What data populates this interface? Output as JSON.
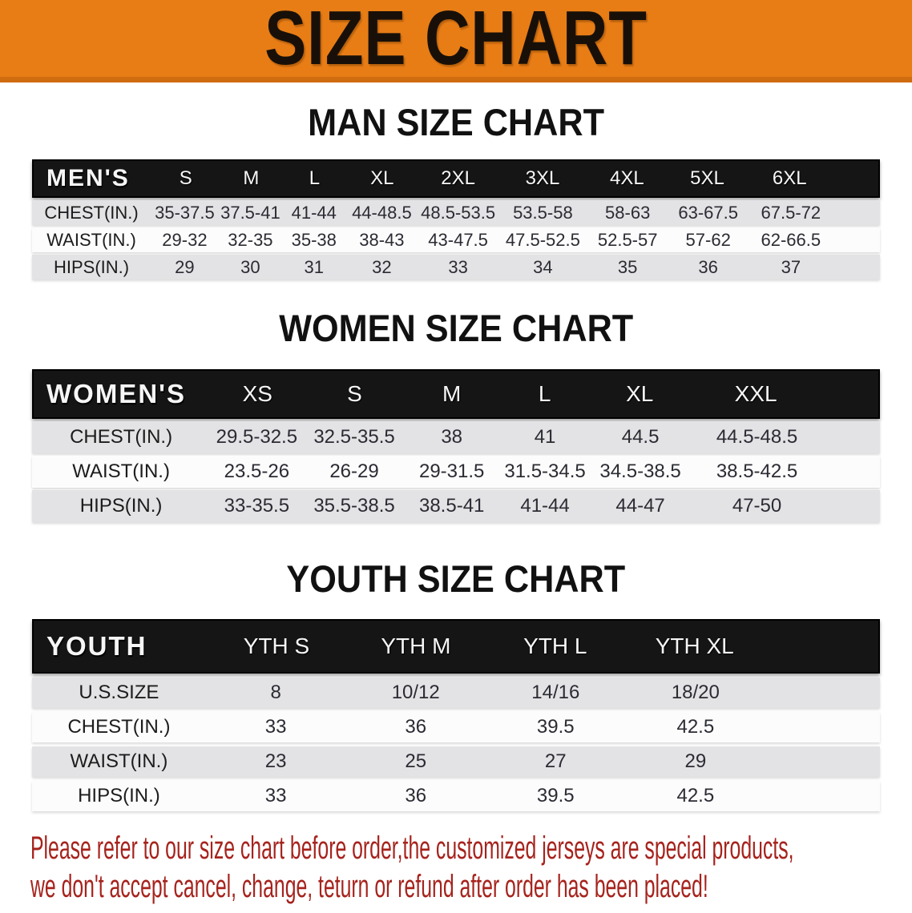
{
  "banner": {
    "title": "SIZE CHART",
    "bg_color": "#e87d16",
    "edge_color": "#d06c10",
    "text_color": "#181008"
  },
  "sections": [
    {
      "title": "MAN SIZE CHART",
      "group_label": "MEN'S",
      "sizes": [
        "S",
        "M",
        "L",
        "XL",
        "2XL",
        "3XL",
        "4XL",
        "5XL",
        "6XL"
      ],
      "rows": [
        {
          "label": "CHEST(IN.)",
          "values": [
            "35-37.5",
            "37.5-41",
            "41-44",
            "44-48.5",
            "48.5-53.5",
            "53.5-58",
            "58-63",
            "63-67.5",
            "67.5-72"
          ]
        },
        {
          "label": "WAIST(IN.)",
          "values": [
            "29-32",
            "32-35",
            "35-38",
            "38-43",
            "43-47.5",
            "47.5-52.5",
            "52.5-57",
            "57-62",
            "62-66.5"
          ]
        },
        {
          "label": "HIPS(IN.)",
          "values": [
            "29",
            "30",
            "31",
            "32",
            "33",
            "34",
            "35",
            "36",
            "37"
          ]
        }
      ]
    },
    {
      "title": "WOMEN SIZE CHART",
      "group_label": "WOMEN'S",
      "sizes": [
        "XS",
        "S",
        "M",
        "L",
        "XL",
        "XXL"
      ],
      "rows": [
        {
          "label": "CHEST(IN.)",
          "values": [
            "29.5-32.5",
            "32.5-35.5",
            "38",
            "41",
            "44.5",
            "44.5-48.5"
          ]
        },
        {
          "label": "WAIST(IN.)",
          "values": [
            "23.5-26",
            "26-29",
            "29-31.5",
            "31.5-34.5",
            "34.5-38.5",
            "38.5-42.5"
          ]
        },
        {
          "label": "HIPS(IN.)",
          "values": [
            "33-35.5",
            "35.5-38.5",
            "38.5-41",
            "41-44",
            "44-47",
            "47-50"
          ]
        }
      ]
    },
    {
      "title": "YOUTH SIZE CHART",
      "group_label": "YOUTH",
      "sizes": [
        "YTH S",
        "YTH M",
        "YTH L",
        "YTH XL"
      ],
      "rows": [
        {
          "label": "U.S.SIZE",
          "values": [
            "8",
            "10/12",
            "14/16",
            "18/20"
          ]
        },
        {
          "label": "CHEST(IN.)",
          "values": [
            "33",
            "36",
            "39.5",
            "42.5"
          ]
        },
        {
          "label": "WAIST(IN.)",
          "values": [
            "23",
            "25",
            "27",
            "29"
          ]
        },
        {
          "label": "HIPS(IN.)",
          "values": [
            "33",
            "36",
            "39.5",
            "42.5"
          ]
        }
      ]
    }
  ],
  "disclaimer": {
    "lines": [
      "Please refer to our size chart before order,the customized jerseys are special products,",
      "we don't accept cancel, change, teturn or refund after order has been placed!"
    ],
    "color": "#a6231d"
  },
  "colors": {
    "table_header_bg": "#151515",
    "table_header_text": "#f6f6f6",
    "row_gray": "#e3e3e5",
    "row_white": "#fcfcfc"
  }
}
